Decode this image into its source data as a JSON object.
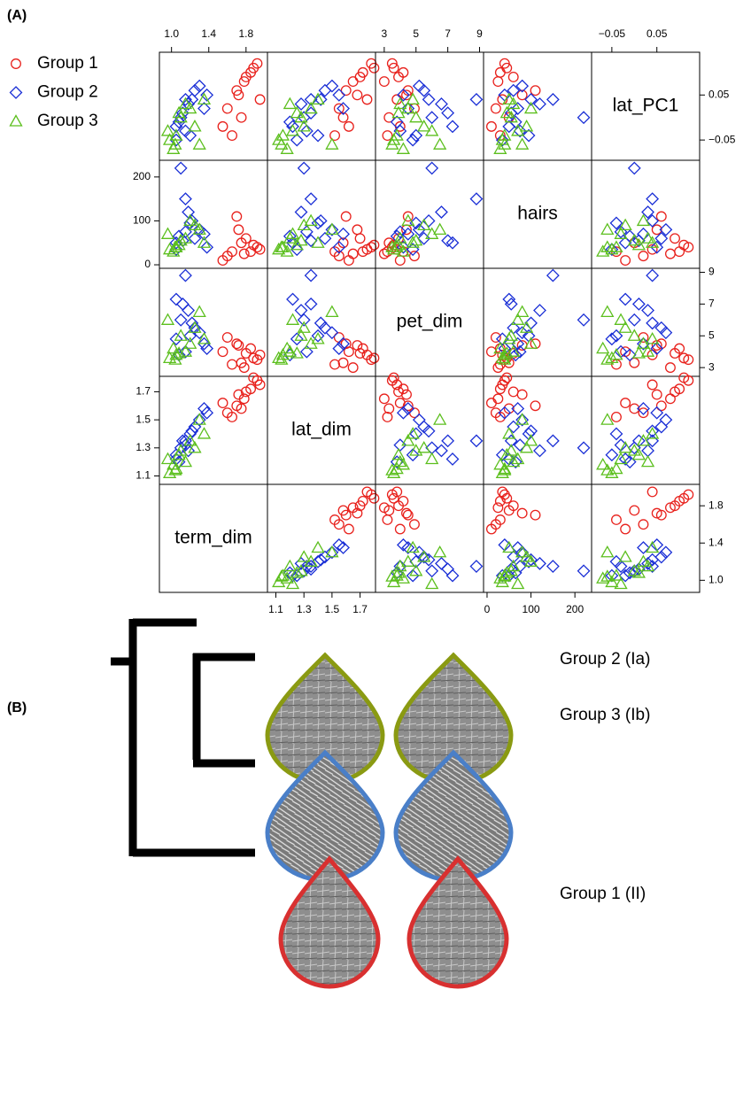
{
  "panel_labels": [
    "(A)",
    "(B)"
  ],
  "chart_data": {
    "type": "scatter-matrix",
    "variables": [
      {
        "name": "lat_PC1",
        "lim": [
          -0.095,
          0.145
        ],
        "ticks": [
          {
            "value": -0.05,
            "label": "−0.05"
          },
          0.05
        ]
      },
      {
        "name": "hairs",
        "lim": [
          -8,
          238
        ],
        "ticks": [
          0,
          100,
          200
        ]
      },
      {
        "name": "pet_dim",
        "lim": [
          2.45,
          9.25
        ],
        "ticks": [
          3,
          5,
          7,
          9
        ]
      },
      {
        "name": "lat_dim",
        "lim": [
          1.04,
          1.81
        ],
        "ticks": [
          1.1,
          1.3,
          1.5,
          1.7
        ]
      },
      {
        "name": "term_dim",
        "lim": [
          0.87,
          2.03
        ],
        "ticks": [
          {
            "value": 1,
            "label": "1.0"
          },
          1.4,
          1.8
        ]
      }
    ],
    "series": [
      {
        "name": "Group 1",
        "color": "#e8211c",
        "marker": "circle",
        "lat_PC1": [
          0.12,
          0.1,
          0.08,
          0.06,
          0.04,
          0.02,
          0.0,
          -0.02,
          0.11,
          0.05,
          -0.04,
          0.09
        ],
        "hairs": [
          40,
          30,
          25,
          110,
          35,
          20,
          50,
          10,
          45,
          80,
          30,
          60
        ],
        "pet_dim": [
          3.5,
          4.2,
          3.0,
          4.5,
          3.8,
          4.9,
          3.3,
          4.0,
          3.6,
          4.4,
          3.2,
          3.9
        ],
        "lat_dim": [
          1.78,
          1.72,
          1.65,
          1.6,
          1.75,
          1.55,
          1.58,
          1.62,
          1.8,
          1.68,
          1.52,
          1.7
        ],
        "term_dim": [
          1.92,
          1.85,
          1.78,
          1.7,
          1.95,
          1.6,
          1.75,
          1.55,
          1.88,
          1.72,
          1.65,
          1.8
        ]
      },
      {
        "name": "Group 2",
        "color": "#1a2fd6",
        "marker": "diamond",
        "lat_PC1": [
          0.06,
          0.04,
          0.02,
          0.0,
          -0.02,
          -0.04,
          0.05,
          0.03,
          -0.01,
          0.07,
          0.01,
          -0.05,
          0.04,
          -0.03
        ],
        "hairs": [
          60,
          150,
          70,
          220,
          50,
          95,
          40,
          120,
          65,
          80,
          55,
          35,
          100,
          75
        ],
        "pet_dim": [
          5.5,
          8.8,
          4.5,
          6.0,
          7.3,
          5.0,
          4.2,
          6.6,
          3.8,
          5.2,
          7.0,
          4.8,
          5.8,
          4.0
        ],
        "lat_dim": [
          1.45,
          1.35,
          1.58,
          1.3,
          1.22,
          1.4,
          1.55,
          1.28,
          1.2,
          1.5,
          1.35,
          1.25,
          1.42,
          1.32
        ],
        "term_dim": [
          1.25,
          1.15,
          1.35,
          1.1,
          1.05,
          1.2,
          1.38,
          1.18,
          1.08,
          1.3,
          1.12,
          1.05,
          1.22,
          1.15
        ]
      },
      {
        "name": "Group 3",
        "color": "#5cbf1e",
        "marker": "triangle",
        "lat_PC1": [
          0.02,
          -0.04,
          -0.06,
          0.0,
          -0.05,
          0.03,
          -0.02,
          -0.07,
          0.01,
          -0.03,
          0.04,
          -0.06
        ],
        "hairs": [
          100,
          40,
          80,
          55,
          35,
          60,
          90,
          30,
          45,
          70,
          50,
          40
        ],
        "pet_dim": [
          4.5,
          3.8,
          6.5,
          5.0,
          3.6,
          4.0,
          5.5,
          4.2,
          3.9,
          6.0,
          4.8,
          3.5
        ],
        "lat_dim": [
          1.35,
          1.15,
          1.5,
          1.28,
          1.12,
          1.2,
          1.3,
          1.18,
          1.25,
          1.22,
          1.4,
          1.14
        ],
        "term_dim": [
          1.2,
          1.05,
          1.3,
          1.1,
          0.98,
          1.15,
          1.25,
          1.02,
          1.08,
          0.96,
          1.35,
          1.04
        ]
      }
    ]
  },
  "dendrogram": {
    "leaves": [
      "Group 3 (Ib)",
      "Group 2 (Ia)",
      "Group 1 (II)"
    ]
  }
}
